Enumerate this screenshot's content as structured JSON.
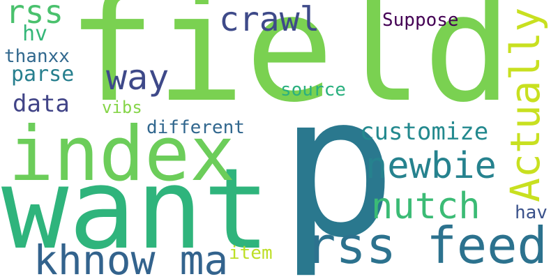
{
  "words": [
    {
      "text": "field",
      "color": "#7ad151"
    },
    {
      "text": "p",
      "color": "#2a788e"
    },
    {
      "text": "want",
      "color": "#2fb47c"
    },
    {
      "text": "index",
      "color": "#6ccd5a"
    },
    {
      "text": "rss feed",
      "color": "#2c728e"
    },
    {
      "text": "khnow ma",
      "color": "#33638d"
    },
    {
      "text": "Actually",
      "color": "#c8e020"
    },
    {
      "text": "nutch",
      "color": "#3bbb75"
    },
    {
      "text": "newbie",
      "color": "#26828e"
    },
    {
      "text": "way",
      "color": "#3e4989"
    },
    {
      "text": "crawl",
      "color": "#3e4a89"
    },
    {
      "text": "rss",
      "color": "#4ac16d"
    },
    {
      "text": "customize",
      "color": "#23898e"
    },
    {
      "text": "data",
      "color": "#414487"
    },
    {
      "text": "parse",
      "color": "#277f8e"
    },
    {
      "text": "hv",
      "color": "#35b779"
    },
    {
      "text": "thanxx",
      "color": "#31688e"
    },
    {
      "text": "source",
      "color": "#2ab07f"
    },
    {
      "text": "different",
      "color": "#31678e"
    },
    {
      "text": "vibs",
      "color": "#86d549"
    },
    {
      "text": "Suppose",
      "color": "#440154"
    },
    {
      "text": "item",
      "color": "#bddf26"
    },
    {
      "text": "hav",
      "color": "#3b528b"
    }
  ]
}
